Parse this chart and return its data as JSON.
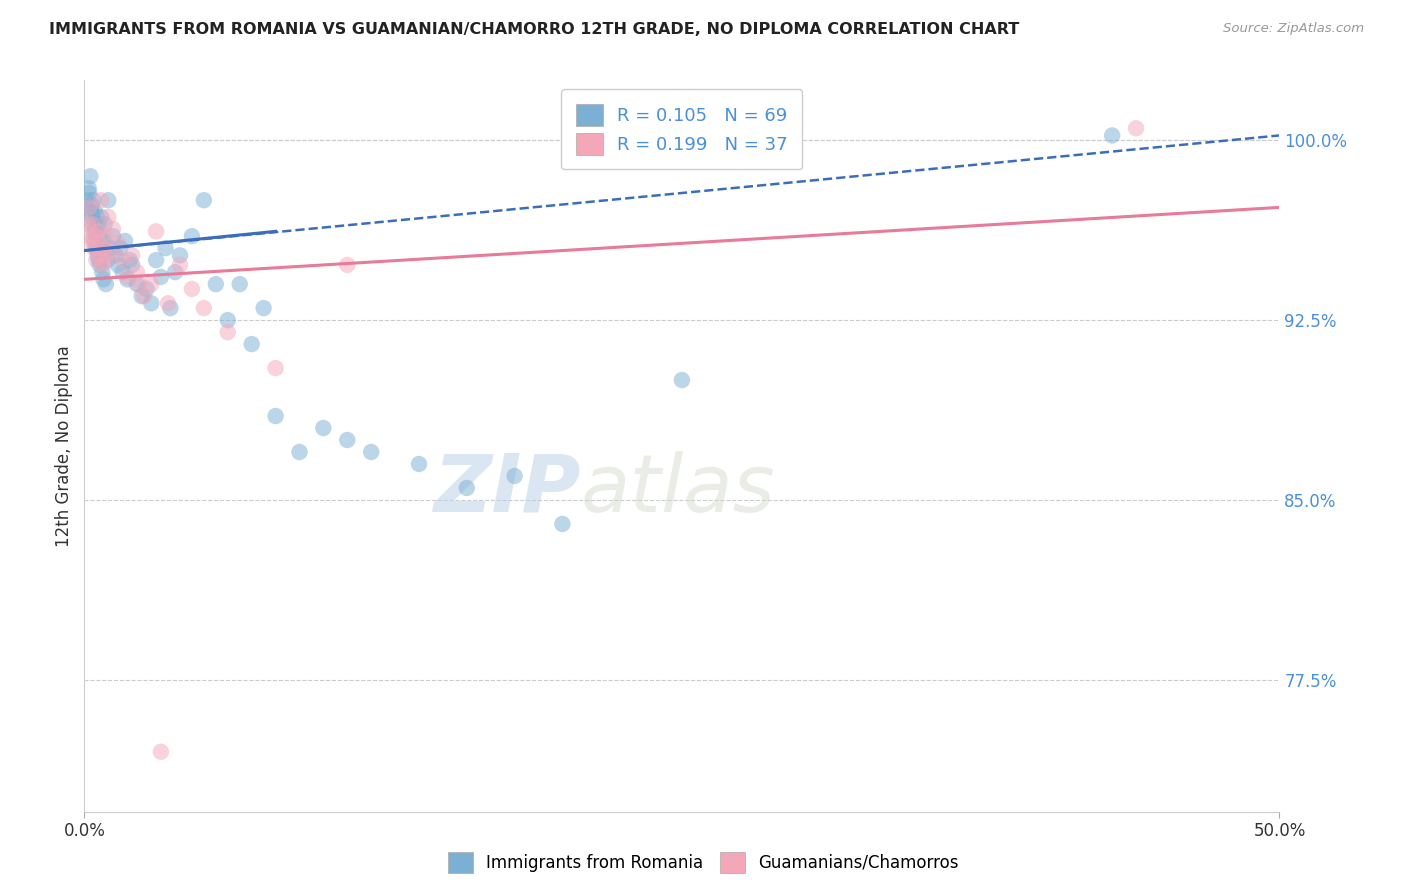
{
  "title": "IMMIGRANTS FROM ROMANIA VS GUAMANIAN/CHAMORRO 12TH GRADE, NO DIPLOMA CORRELATION CHART",
  "source": "Source: ZipAtlas.com",
  "ylabel": "12th Grade, No Diploma",
  "xlim": [
    0.0,
    50.0
  ],
  "ylim": [
    72.0,
    102.5
  ],
  "yticks": [
    77.5,
    85.0,
    92.5,
    100.0
  ],
  "ytick_labels": [
    "77.5%",
    "85.0%",
    "92.5%",
    "100.0%"
  ],
  "legend_r1": "R = 0.105",
  "legend_n1": "N = 69",
  "legend_r2": "R = 0.199",
  "legend_n2": "N = 37",
  "blue_color": "#7bafd4",
  "pink_color": "#f4a7b9",
  "trend_blue_color": "#3a6ebd",
  "trend_pink_color": "#e87a9a",
  "label1": "Immigrants from Romania",
  "label2": "Guamanians/Chamorros",
  "blue_scatter_x": [
    0.15,
    0.18,
    0.2,
    0.22,
    0.25,
    0.28,
    0.3,
    0.32,
    0.35,
    0.38,
    0.4,
    0.42,
    0.45,
    0.48,
    0.5,
    0.52,
    0.55,
    0.58,
    0.6,
    0.62,
    0.65,
    0.68,
    0.7,
    0.72,
    0.75,
    0.78,
    0.8,
    0.85,
    0.9,
    0.95,
    1.0,
    1.1,
    1.2,
    1.3,
    1.4,
    1.5,
    1.6,
    1.7,
    1.8,
    1.9,
    2.0,
    2.2,
    2.4,
    2.6,
    2.8,
    3.0,
    3.2,
    3.4,
    3.6,
    3.8,
    4.0,
    4.5,
    5.0,
    5.5,
    6.0,
    6.5,
    7.0,
    7.5,
    8.0,
    9.0,
    10.0,
    11.0,
    12.0,
    14.0,
    16.0,
    18.0,
    20.0,
    43.0,
    25.0
  ],
  "blue_scatter_y": [
    97.5,
    98.0,
    97.8,
    97.2,
    98.5,
    97.0,
    96.8,
    97.3,
    96.5,
    97.5,
    96.2,
    95.8,
    97.0,
    96.3,
    95.5,
    96.8,
    95.2,
    96.5,
    95.0,
    96.0,
    94.8,
    95.5,
    96.8,
    95.3,
    94.5,
    95.8,
    94.2,
    96.5,
    94.0,
    95.0,
    97.5,
    95.5,
    96.0,
    95.2,
    94.8,
    95.5,
    94.5,
    95.8,
    94.2,
    95.0,
    94.8,
    94.0,
    93.5,
    93.8,
    93.2,
    95.0,
    94.3,
    95.5,
    93.0,
    94.5,
    95.2,
    96.0,
    97.5,
    94.0,
    92.5,
    94.0,
    91.5,
    93.0,
    88.5,
    87.0,
    88.0,
    87.5,
    87.0,
    86.5,
    85.5,
    86.0,
    84.0,
    100.2,
    90.0
  ],
  "pink_scatter_x": [
    0.15,
    0.2,
    0.25,
    0.3,
    0.35,
    0.4,
    0.45,
    0.5,
    0.55,
    0.6,
    0.65,
    0.7,
    0.75,
    0.8,
    0.85,
    0.9,
    1.0,
    1.1,
    1.2,
    1.4,
    1.6,
    1.8,
    2.0,
    2.2,
    2.5,
    2.8,
    3.0,
    3.5,
    4.0,
    4.5,
    5.0,
    6.0,
    8.0,
    11.0,
    3.2,
    44.0,
    2.3
  ],
  "pink_scatter_y": [
    96.5,
    97.2,
    96.0,
    95.8,
    96.5,
    95.5,
    96.0,
    95.0,
    95.5,
    96.2,
    95.2,
    97.5,
    94.8,
    95.5,
    96.0,
    95.0,
    96.8,
    95.3,
    96.3,
    95.7,
    95.0,
    94.3,
    95.2,
    94.5,
    93.5,
    94.0,
    96.2,
    93.2,
    94.8,
    93.8,
    93.0,
    92.0,
    90.5,
    94.8,
    74.5,
    100.5,
    94.0
  ],
  "blue_trend_x0": 0.0,
  "blue_trend_y0": 95.4,
  "blue_trend_x1": 50.0,
  "blue_trend_y1": 100.2,
  "blue_solid_x0": 0.0,
  "blue_solid_y0": 95.4,
  "blue_solid_x1": 8.0,
  "blue_solid_y1": 96.2,
  "pink_trend_x0": 0.0,
  "pink_trend_y0": 94.2,
  "pink_trend_x1": 50.0,
  "pink_trend_y1": 97.2,
  "watermark_zip": "ZIP",
  "watermark_atlas": "atlas",
  "background_color": "#ffffff",
  "grid_color": "#cccccc"
}
